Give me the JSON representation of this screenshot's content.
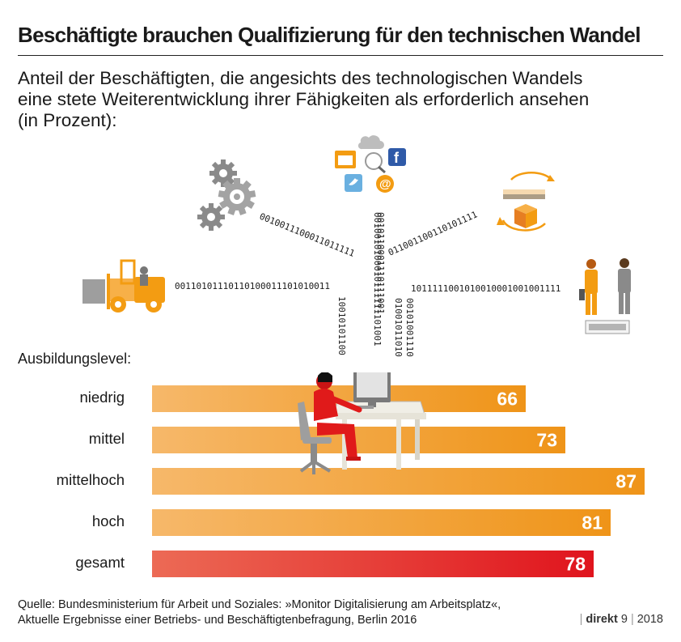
{
  "title": "Beschäftigte brauchen Qualifizierung für den technischen Wandel",
  "subtitle_lines": [
    "Anteil der Beschäftigten, die angesichts des technologischen Wandels",
    "eine stete Weiterentwicklung ihrer Fähigkeiten als erforderlich ansehen",
    "(in Prozent):"
  ],
  "level_title": "Ausbildungslevel:",
  "chart_data": {
    "type": "bar",
    "orientation": "horizontal",
    "categories": [
      "niedrig",
      "mittel",
      "mittelhoch",
      "hoch",
      "gesamt"
    ],
    "values": [
      66,
      73,
      87,
      81,
      78
    ],
    "unit": "Prozent",
    "xlim": [
      0,
      87
    ],
    "highlight_category": "gesamt",
    "colors": {
      "bar_start": "#f6b86a",
      "bar_end": "#ef9418",
      "highlight_start": "#ec6a55",
      "highlight_end": "#e0141d"
    }
  },
  "binary_strings": [
    "00110101110110100011101010011",
    "0010011100011011111",
    "0010010100010111111101001",
    "0010110001110111001",
    "011001100110101111",
    "1011111001010010001001001111",
    "10010101100",
    "01001011010",
    "00101001110"
  ],
  "icons": {
    "forklift": "forklift-icon",
    "gears": "gears-icon",
    "social": "social-media-icons",
    "logistics": "logistics-cycle-icon",
    "workers": "workers-icon",
    "office": "office-worker-icon"
  },
  "source_lines": [
    "Quelle: Bundesministerium für Arbeit und Soziales: »Monitor Digitalisierung am Arbeitsplatz«,",
    "Aktuelle Ergebnisse einer Betriebs- und Beschäftigtenbefragung, Berlin 2016"
  ],
  "brand": {
    "name": "direkt",
    "issue": "9",
    "year": "2018"
  }
}
